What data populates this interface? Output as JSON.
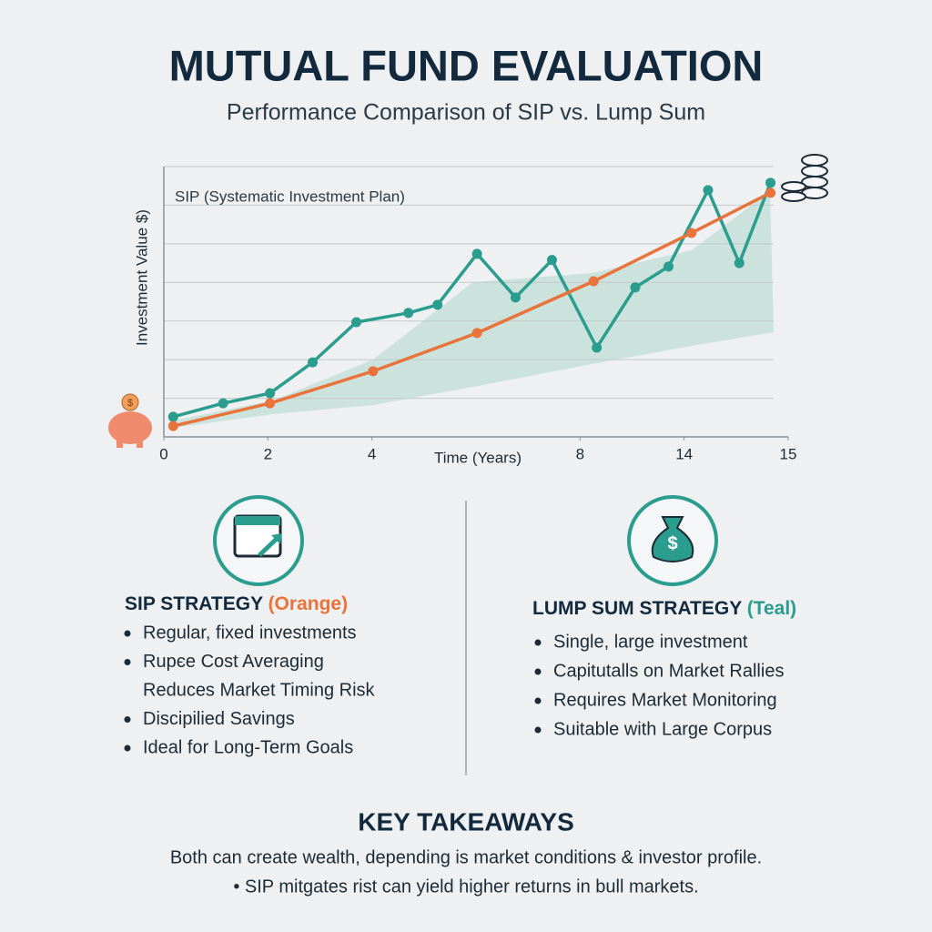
{
  "chart_data": {
    "type": "line",
    "title": "MUTUAL FUND EVALUATION",
    "subtitle": "Performance Comparison of SIP vs. Lump Sum",
    "annotation": "SIP (Systematic Investment Plan)",
    "ylabel": "Investment Value $)",
    "xlabel": "Time (Years)",
    "xlim": [
      0,
      6
    ],
    "xticks": [
      0,
      {
        "value": 1,
        "label": "2"
      },
      {
        "value": 2,
        "label": "4"
      },
      {
        "value": 4,
        "label": "8"
      },
      {
        "value": 5,
        "label": "14"
      },
      {
        "value": 6,
        "label": "15"
      }
    ],
    "ylim": [
      0,
      7
    ],
    "yticks": [
      1,
      2,
      3,
      4,
      5,
      6,
      7
    ],
    "grid": true,
    "series": [
      {
        "color": "#2a9d8f",
        "x": [
          0.09,
          0.57,
          1.02,
          1.43,
          1.85,
          2.35,
          2.63,
          3.01,
          3.38,
          3.73,
          4.16,
          4.53,
          4.85,
          5.23,
          5.53,
          5.83
        ],
        "values": [
          0.52,
          0.87,
          1.13,
          1.93,
          2.97,
          3.21,
          3.42,
          4.74,
          3.61,
          4.58,
          2.31,
          3.87,
          4.41,
          6.39,
          4.5,
          6.58
        ]
      },
      {
        "color": "#e8743b",
        "x": [
          0.09,
          1.02,
          2.01,
          3.01,
          4.13,
          5.07,
          5.83
        ],
        "values": [
          0.28,
          0.87,
          1.7,
          2.69,
          4.03,
          5.28,
          6.32
        ]
      }
    ]
  },
  "page": {
    "sip": {
      "heading": "SIP STRATEGY",
      "tag": "(Orange)",
      "items": [
        "Regular, fixed investments",
        [
          "Rupєe Cost Averaging",
          "Reduces Market Timing Risk"
        ],
        "Discipilied Savings",
        "Ideal for Long-Term Goals"
      ]
    },
    "lump": {
      "heading": "LUMP SUM STRATEGY",
      "tag": "(Teal)",
      "items": [
        "Single, large investment",
        "Capitutalls on Market Rallies",
        "Requires Market Monitoring",
        "Suitable with Large Corpus"
      ]
    },
    "takeaways": {
      "heading": "KEY TAKEAWAYS",
      "lines": [
        "Both can create wealth, depending is market conditions & investor profile.",
        "• SIP mitgates rist can yield higher returns in bull markets."
      ]
    }
  }
}
